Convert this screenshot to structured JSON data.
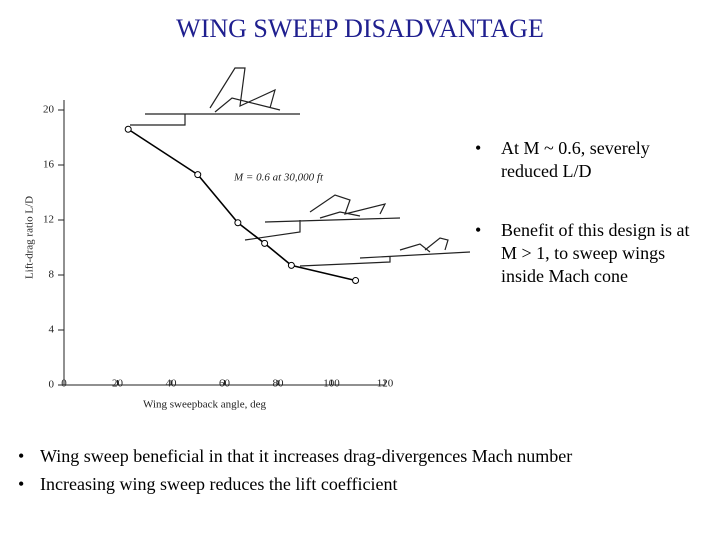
{
  "title": "WING SWEEP DISADVANTAGE",
  "chart_data": {
    "type": "line",
    "xlabel": "Wing sweepback angle, deg",
    "ylabel": "Lift-drag ratio L/D",
    "annotation": "M = 0.6 at 30,000 ft",
    "x": [
      24,
      50,
      65,
      75,
      85,
      109
    ],
    "series": [
      {
        "color": "#000000",
        "values": [
          18.6,
          15.3,
          11.8,
          10.3,
          8.7,
          7.6
        ]
      }
    ],
    "xlim": [
      0,
      120
    ],
    "xticks": [
      0,
      20,
      40,
      60,
      80,
      100,
      120
    ],
    "ylim": [
      0,
      20
    ],
    "yticks": [
      0,
      4,
      8,
      12,
      16,
      20
    ]
  },
  "bullets_right": [
    "At M ~ 0.6, severely reduced L/D",
    "Benefit of this design is at M > 1, to sweep wings inside Mach cone"
  ],
  "bullets_bottom": [
    "Wing sweep beneficial in that it increases drag-divergences Mach number",
    "Increasing wing sweep reduces the lift coefficient"
  ]
}
